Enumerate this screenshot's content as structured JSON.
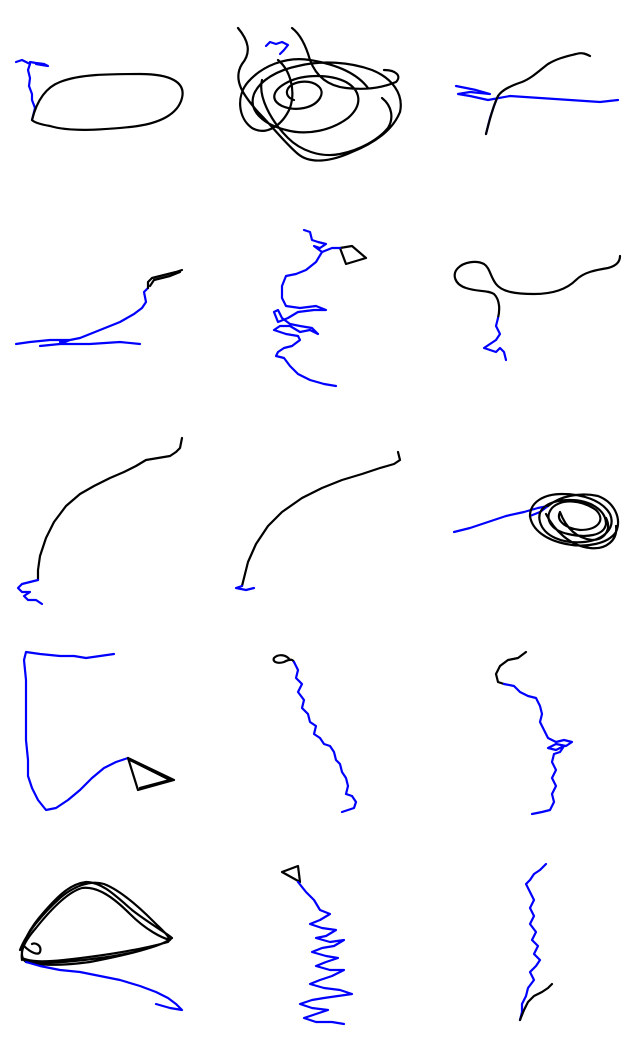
{
  "colors": {
    "background": "#ffffff",
    "primary_trace": "#000000",
    "secondary_trace": "#0000ff"
  },
  "grid": {
    "rows": 5,
    "columns": 3
  },
  "panels": [
    {
      "name": "panel-1",
      "has_text": false
    },
    {
      "name": "panel-2",
      "has_text": false
    },
    {
      "name": "panel-3",
      "has_text": false
    },
    {
      "name": "panel-4",
      "has_text": false
    },
    {
      "name": "panel-5",
      "has_text": false
    },
    {
      "name": "panel-6",
      "has_text": false
    },
    {
      "name": "panel-7",
      "has_text": false
    },
    {
      "name": "panel-8",
      "has_text": false
    },
    {
      "name": "panel-9",
      "has_text": false
    },
    {
      "name": "panel-10",
      "has_text": false
    },
    {
      "name": "panel-11",
      "has_text": false
    },
    {
      "name": "panel-12",
      "has_text": false
    },
    {
      "name": "panel-13",
      "has_text": false
    },
    {
      "name": "panel-14",
      "has_text": false
    },
    {
      "name": "panel-15",
      "has_text": false
    }
  ]
}
